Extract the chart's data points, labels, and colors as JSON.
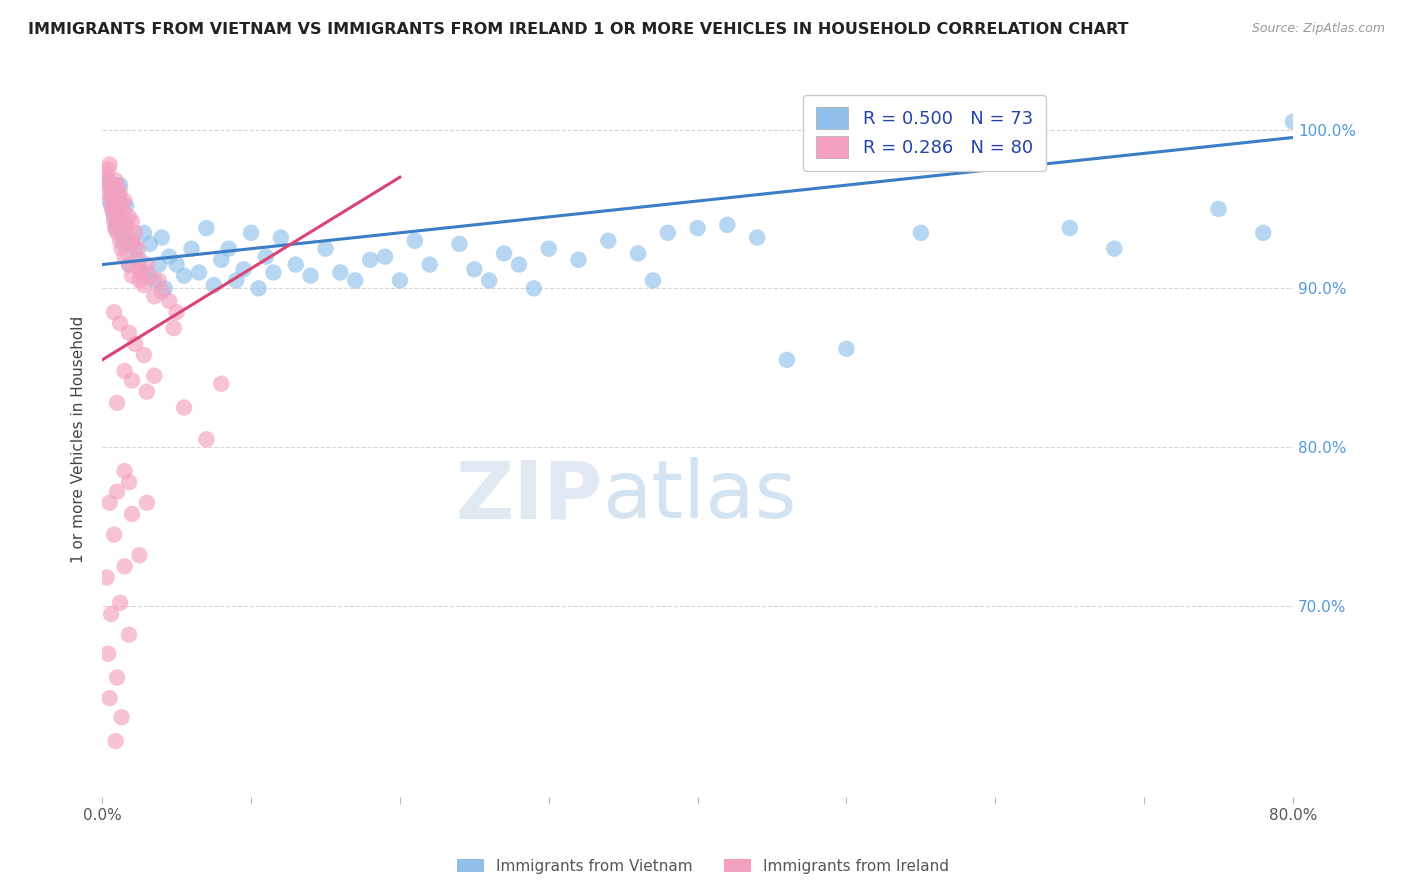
{
  "title": "IMMIGRANTS FROM VIETNAM VS IMMIGRANTS FROM IRELAND 1 OR MORE VEHICLES IN HOUSEHOLD CORRELATION CHART",
  "source": "Source: ZipAtlas.com",
  "ylabel": "1 or more Vehicles in Household",
  "xmin": 0.0,
  "xmax": 80.0,
  "ymin": 58.0,
  "ymax": 103.0,
  "yticks": [
    70.0,
    80.0,
    90.0,
    100.0
  ],
  "legend_label_vietnam": "R = 0.500   N = 73",
  "legend_label_ireland": "R = 0.286   N = 80",
  "bottom_label1": "Immigrants from Vietnam",
  "bottom_label2": "Immigrants from Ireland",
  "color_vietnam": "#90C0EA",
  "color_ireland": "#F4A0C0",
  "trendline_vietnam_color": "#3B7EC5",
  "trendline_ireland_color": "#D94470",
  "trendline_vietnam_lw": 2.2,
  "trendline_ireland_lw": 2.2,
  "watermark_text": "ZIPatlas",
  "vietnam_points": [
    [
      0.4,
      96.8
    ],
    [
      0.5,
      95.5
    ],
    [
      0.6,
      96.2
    ],
    [
      0.7,
      95.0
    ],
    [
      0.8,
      94.5
    ],
    [
      0.9,
      93.8
    ],
    [
      1.0,
      94.2
    ],
    [
      1.1,
      95.8
    ],
    [
      1.2,
      96.5
    ],
    [
      1.3,
      93.5
    ],
    [
      1.4,
      92.8
    ],
    [
      1.5,
      94.0
    ],
    [
      1.6,
      95.2
    ],
    [
      1.8,
      91.5
    ],
    [
      2.0,
      93.0
    ],
    [
      2.2,
      92.5
    ],
    [
      2.5,
      91.8
    ],
    [
      2.8,
      93.5
    ],
    [
      3.0,
      91.0
    ],
    [
      3.2,
      92.8
    ],
    [
      3.5,
      90.5
    ],
    [
      3.8,
      91.5
    ],
    [
      4.0,
      93.2
    ],
    [
      4.2,
      90.0
    ],
    [
      4.5,
      92.0
    ],
    [
      5.0,
      91.5
    ],
    [
      5.5,
      90.8
    ],
    [
      6.0,
      92.5
    ],
    [
      6.5,
      91.0
    ],
    [
      7.0,
      93.8
    ],
    [
      7.5,
      90.2
    ],
    [
      8.0,
      91.8
    ],
    [
      8.5,
      92.5
    ],
    [
      9.0,
      90.5
    ],
    [
      9.5,
      91.2
    ],
    [
      10.0,
      93.5
    ],
    [
      10.5,
      90.0
    ],
    [
      11.0,
      92.0
    ],
    [
      11.5,
      91.0
    ],
    [
      12.0,
      93.2
    ],
    [
      13.0,
      91.5
    ],
    [
      14.0,
      90.8
    ],
    [
      15.0,
      92.5
    ],
    [
      16.0,
      91.0
    ],
    [
      17.0,
      90.5
    ],
    [
      18.0,
      91.8
    ],
    [
      19.0,
      92.0
    ],
    [
      20.0,
      90.5
    ],
    [
      21.0,
      93.0
    ],
    [
      22.0,
      91.5
    ],
    [
      24.0,
      92.8
    ],
    [
      25.0,
      91.2
    ],
    [
      26.0,
      90.5
    ],
    [
      27.0,
      92.2
    ],
    [
      28.0,
      91.5
    ],
    [
      29.0,
      90.0
    ],
    [
      30.0,
      92.5
    ],
    [
      32.0,
      91.8
    ],
    [
      34.0,
      93.0
    ],
    [
      36.0,
      92.2
    ],
    [
      37.0,
      90.5
    ],
    [
      38.0,
      93.5
    ],
    [
      40.0,
      93.8
    ],
    [
      42.0,
      94.0
    ],
    [
      44.0,
      93.2
    ],
    [
      46.0,
      85.5
    ],
    [
      50.0,
      86.2
    ],
    [
      55.0,
      93.5
    ],
    [
      65.0,
      93.8
    ],
    [
      68.0,
      92.5
    ],
    [
      75.0,
      95.0
    ],
    [
      78.0,
      93.5
    ],
    [
      80.0,
      100.5
    ]
  ],
  "ireland_points": [
    [
      0.2,
      97.2
    ],
    [
      0.3,
      96.8
    ],
    [
      0.4,
      97.5
    ],
    [
      0.4,
      96.0
    ],
    [
      0.5,
      97.8
    ],
    [
      0.5,
      96.5
    ],
    [
      0.6,
      95.8
    ],
    [
      0.6,
      95.2
    ],
    [
      0.7,
      96.2
    ],
    [
      0.7,
      94.8
    ],
    [
      0.8,
      95.5
    ],
    [
      0.8,
      94.2
    ],
    [
      0.9,
      96.8
    ],
    [
      0.9,
      93.8
    ],
    [
      1.0,
      96.5
    ],
    [
      1.0,
      95.0
    ],
    [
      1.0,
      93.5
    ],
    [
      1.1,
      95.8
    ],
    [
      1.1,
      94.5
    ],
    [
      1.2,
      96.0
    ],
    [
      1.2,
      93.0
    ],
    [
      1.3,
      95.2
    ],
    [
      1.3,
      92.5
    ],
    [
      1.4,
      94.8
    ],
    [
      1.5,
      95.5
    ],
    [
      1.5,
      92.0
    ],
    [
      1.6,
      94.0
    ],
    [
      1.7,
      93.5
    ],
    [
      1.8,
      94.5
    ],
    [
      1.8,
      91.5
    ],
    [
      1.9,
      93.0
    ],
    [
      2.0,
      94.2
    ],
    [
      2.0,
      90.8
    ],
    [
      2.1,
      92.8
    ],
    [
      2.2,
      93.5
    ],
    [
      2.3,
      91.8
    ],
    [
      2.4,
      92.5
    ],
    [
      2.5,
      91.2
    ],
    [
      2.5,
      90.5
    ],
    [
      2.6,
      91.0
    ],
    [
      2.8,
      90.2
    ],
    [
      3.0,
      91.5
    ],
    [
      3.2,
      90.8
    ],
    [
      3.5,
      89.5
    ],
    [
      3.8,
      90.5
    ],
    [
      4.0,
      89.8
    ],
    [
      4.5,
      89.2
    ],
    [
      5.0,
      88.5
    ],
    [
      1.8,
      87.2
    ],
    [
      2.2,
      86.5
    ],
    [
      2.8,
      85.8
    ],
    [
      3.5,
      84.5
    ],
    [
      1.2,
      87.8
    ],
    [
      4.8,
      87.5
    ],
    [
      0.8,
      88.5
    ],
    [
      1.5,
      84.8
    ],
    [
      2.0,
      84.2
    ],
    [
      3.0,
      83.5
    ],
    [
      1.0,
      82.8
    ],
    [
      1.5,
      78.5
    ],
    [
      0.5,
      76.5
    ],
    [
      1.0,
      77.2
    ],
    [
      2.0,
      75.8
    ],
    [
      0.8,
      74.5
    ],
    [
      1.5,
      72.5
    ],
    [
      0.3,
      71.8
    ],
    [
      1.2,
      70.2
    ],
    [
      0.6,
      69.5
    ],
    [
      1.8,
      68.2
    ],
    [
      0.4,
      67.0
    ],
    [
      1.0,
      65.5
    ],
    [
      0.5,
      64.2
    ],
    [
      1.3,
      63.0
    ],
    [
      1.8,
      77.8
    ],
    [
      3.0,
      76.5
    ],
    [
      2.5,
      73.2
    ],
    [
      0.9,
      61.5
    ],
    [
      5.5,
      82.5
    ],
    [
      7.0,
      80.5
    ],
    [
      8.0,
      84.0
    ]
  ],
  "trendline_vietnam_x0": 0.0,
  "trendline_vietnam_x1": 80.0,
  "trendline_vietnam_y0": 91.5,
  "trendline_vietnam_y1": 99.5,
  "trendline_ireland_x0": 0.0,
  "trendline_ireland_x1": 20.0,
  "trendline_ireland_y0": 85.5,
  "trendline_ireland_y1": 97.0
}
